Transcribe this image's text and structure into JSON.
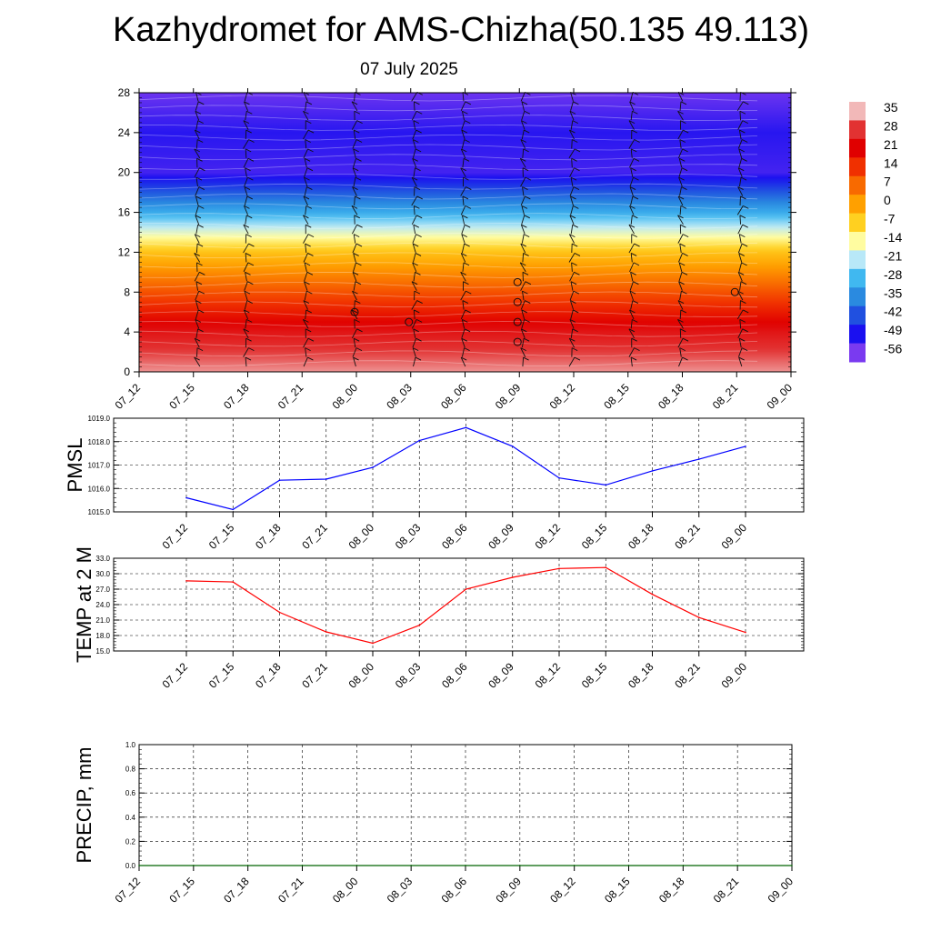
{
  "title": "Kazhydromet for AMS-Chizha(50.135 49.113)",
  "subtitle": "07 July 2025",
  "chart_data": [
    {
      "type": "heatmap",
      "name": "temperature-vertical-section",
      "x_ticks": [
        "07_12",
        "07_15",
        "07_18",
        "07_21",
        "08_00",
        "08_03",
        "08_06",
        "08_09",
        "08_12",
        "08_15",
        "08_18",
        "08_21",
        "09_00"
      ],
      "y_ticks": [
        0,
        4,
        8,
        12,
        16,
        20,
        24,
        28
      ],
      "ylim": [
        0,
        28
      ],
      "colorbar": {
        "labels": [
          "35",
          "28",
          "21",
          "14",
          "7",
          "0",
          "-7",
          "-14",
          "-21",
          "-28",
          "-35",
          "-42",
          "-49",
          "-56"
        ],
        "colors": [
          "#f2b8b8",
          "#e23232",
          "#e00000",
          "#f03000",
          "#f86a00",
          "#ffa000",
          "#ffd020",
          "#fffca0",
          "#b8e8f8",
          "#40b8f0",
          "#2a8ae0",
          "#2050e0",
          "#1a10f0",
          "#7a3af0"
        ]
      },
      "profile": [
        {
          "level": 0,
          "value": 33
        },
        {
          "level": 4,
          "value": 24
        },
        {
          "level": 8,
          "value": 10
        },
        {
          "level": 12,
          "value": -5
        },
        {
          "level": 13.5,
          "value": -14
        },
        {
          "level": 16,
          "value": -30
        },
        {
          "level": 20,
          "value": -52
        },
        {
          "level": 24,
          "value": -50
        },
        {
          "level": 28,
          "value": -55
        }
      ]
    },
    {
      "type": "line",
      "name": "pmsl",
      "ylabel": "PMSL",
      "categories": [
        "07_12",
        "07_15",
        "07_18",
        "07_21",
        "08_00",
        "08_03",
        "08_06",
        "08_09",
        "08_12",
        "08_15",
        "08_18",
        "08_21",
        "09_00"
      ],
      "series": [
        {
          "values": [
            1015.6,
            1015.1,
            1016.35,
            1016.4,
            1016.9,
            1018.05,
            1018.6,
            1017.8,
            1016.45,
            1016.15,
            1016.75,
            1017.25,
            1017.8
          ],
          "color": "#0000ff"
        }
      ],
      "ylim": [
        1015.0,
        1019.0
      ],
      "yticks": [
        "1015.0",
        "1016.0",
        "1017.0",
        "1018.0",
        "1019.0"
      ],
      "grid": true
    },
    {
      "type": "line",
      "name": "temp-2m",
      "ylabel": "TEMP at 2 M",
      "categories": [
        "07_12",
        "07_15",
        "07_18",
        "07_21",
        "08_00",
        "08_03",
        "08_06",
        "08_09",
        "08_12",
        "08_15",
        "08_18",
        "08_21",
        "09_00"
      ],
      "series": [
        {
          "values": [
            28.6,
            28.4,
            22.5,
            18.7,
            16.5,
            20.0,
            27.0,
            29.3,
            31.0,
            31.2,
            26.0,
            21.5,
            18.6
          ],
          "color": "#ff0000"
        }
      ],
      "ylim": [
        15.0,
        33.0
      ],
      "yticks": [
        "15.0",
        "18.0",
        "21.0",
        "24.0",
        "27.0",
        "30.0",
        "33.0"
      ],
      "grid": true
    },
    {
      "type": "line",
      "name": "precip",
      "ylabel": "PRECIP, mm",
      "categories": [
        "07_12",
        "07_15",
        "07_18",
        "07_21",
        "08_00",
        "08_03",
        "08_06",
        "08_09",
        "08_12",
        "08_15",
        "08_18",
        "08_21",
        "09_00"
      ],
      "series": [
        {
          "values": [
            0,
            0,
            0,
            0,
            0,
            0,
            0,
            0,
            0,
            0,
            0,
            0,
            0
          ],
          "color": "#006400"
        }
      ],
      "ylim": [
        0.0,
        1.0
      ],
      "yticks": [
        "0.0",
        "0.2",
        "0.4",
        "0.6",
        "0.8",
        "1.0"
      ],
      "grid": true
    }
  ]
}
